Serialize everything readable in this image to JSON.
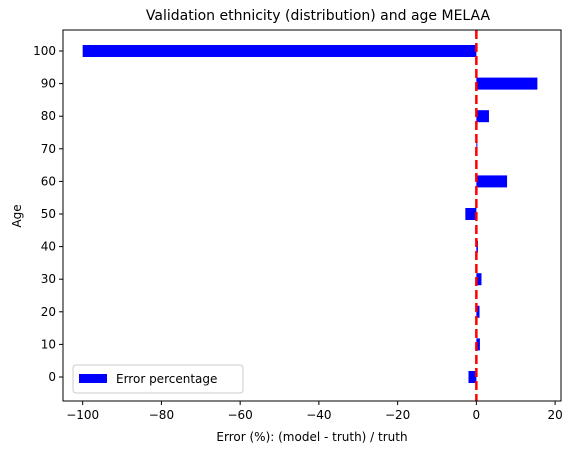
{
  "chart_data": {
    "type": "bar",
    "orientation": "horizontal",
    "title": "Validation ethnicity (distribution) and age MELAA",
    "xlabel": "Error (%): (model - truth) / truth",
    "ylabel": "Age",
    "categories": [
      "0",
      "10",
      "20",
      "30",
      "40",
      "50",
      "60",
      "70",
      "80",
      "90",
      "100"
    ],
    "series": [
      {
        "name": "Error percentage",
        "color": "#0000ff",
        "values": [
          -2.0,
          0.9,
          0.8,
          1.3,
          0.4,
          -2.8,
          7.8,
          0.2,
          3.2,
          15.5,
          -100.0
        ]
      }
    ],
    "xlim": [
      -105,
      21.5
    ],
    "xticks": [
      -100,
      -80,
      -60,
      -40,
      -20,
      0,
      20
    ],
    "xtick_labels": [
      "−100",
      "−80",
      "−60",
      "−40",
      "−20",
      "0",
      "20"
    ],
    "reference_line": {
      "x": 0,
      "color": "#ff0000",
      "style": "dashed"
    },
    "legend": {
      "position": "lower-left"
    },
    "grid": false
  }
}
